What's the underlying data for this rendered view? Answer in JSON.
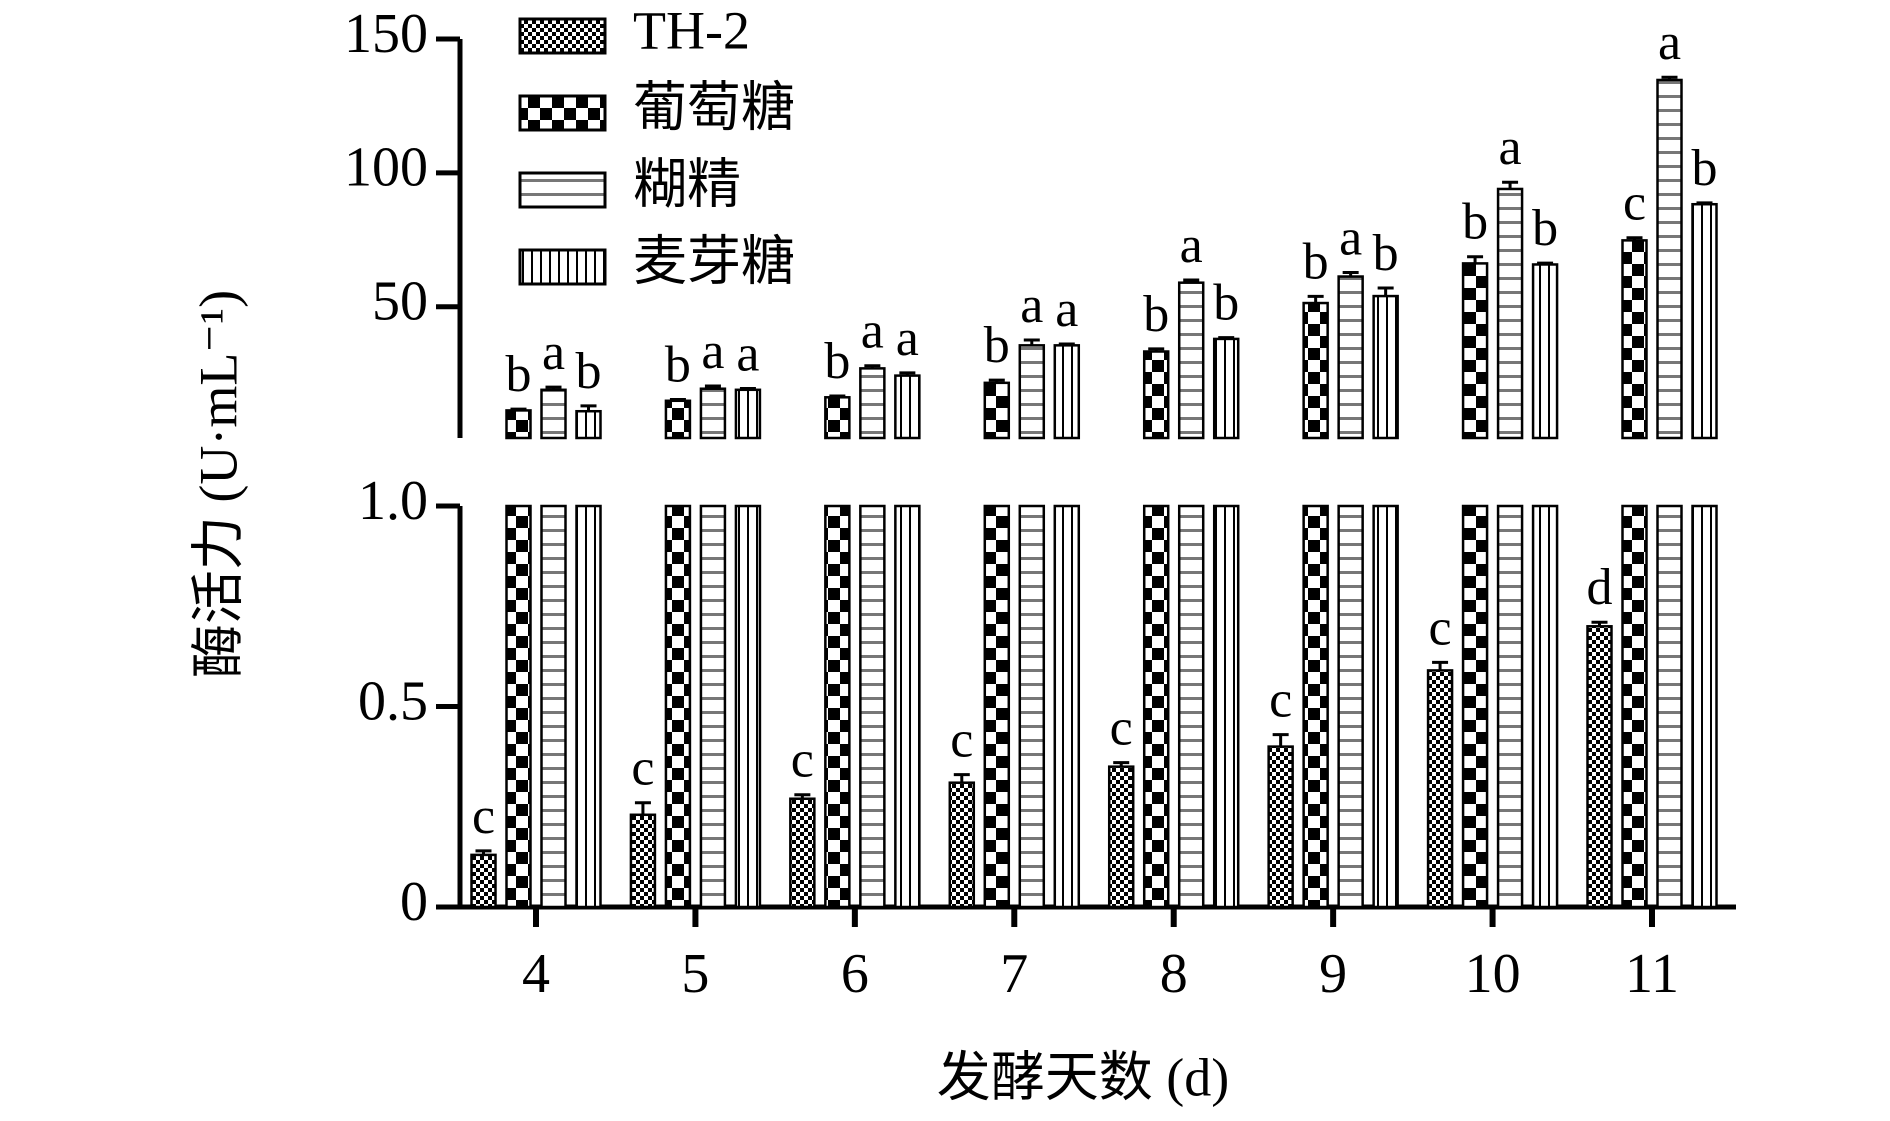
{
  "chart_data": {
    "type": "bar",
    "x_label": "发酵天数 (d)",
    "y_label": "酶活力 (U·mL⁻¹)",
    "categories": [
      "4",
      "5",
      "6",
      "7",
      "8",
      "9",
      "10",
      "11"
    ],
    "broken_axis": true,
    "ylim": [
      0,
      1
    ],
    "yticks": [
      0,
      0.5,
      {
        "value": 1,
        "label": "1.0"
      }
    ],
    "y2lim": [
      1,
      150
    ],
    "y2ticks": [
      50,
      100,
      150
    ],
    "legend": "top-left",
    "series": [
      {
        "name": "TH-2",
        "color": "#000000",
        "pattern": "fine-checker",
        "values": [
          0.13,
          0.23,
          0.27,
          0.31,
          0.35,
          0.4,
          0.59,
          0.7
        ],
        "errors": [
          0.01,
          0.03,
          0.01,
          0.02,
          0.01,
          0.03,
          0.02,
          0.01
        ],
        "letters": [
          "c",
          "c",
          "c",
          "c",
          "c",
          "c",
          "c",
          "d"
        ]
      },
      {
        "name": "葡萄糖",
        "color": "#000000",
        "pattern": "checker",
        "values": [
          11.3,
          14.9,
          16.2,
          21.6,
          33.3,
          51.4,
          66.2,
          74.8
        ],
        "errors": [
          0.5,
          0.5,
          0.5,
          1,
          1,
          2.5,
          2.5,
          1
        ],
        "letters": [
          "b",
          "b",
          "b",
          "b",
          "b",
          "b",
          "b",
          "c"
        ]
      },
      {
        "name": "糊精",
        "color": "#000000",
        "pattern": "horizontal-lines",
        "values": [
          19,
          19.4,
          27,
          35.6,
          59,
          61.3,
          94,
          134.7
        ],
        "errors": [
          1,
          1,
          1,
          2,
          1,
          1.5,
          2.5,
          1
        ],
        "letters": [
          "a",
          "a",
          "a",
          "a",
          "a",
          "a",
          "a",
          "a"
        ]
      },
      {
        "name": "麦芽糖",
        "color": "#000000",
        "pattern": "vertical-lines",
        "values": [
          11,
          19,
          24.3,
          35.6,
          38,
          54,
          65.8,
          88.3
        ],
        "errors": [
          2,
          0.5,
          1,
          0.5,
          0.5,
          3,
          0.5,
          0.5
        ],
        "letters": [
          "b",
          "a",
          "a",
          "a",
          "b",
          "b",
          "b",
          "b"
        ]
      }
    ]
  }
}
